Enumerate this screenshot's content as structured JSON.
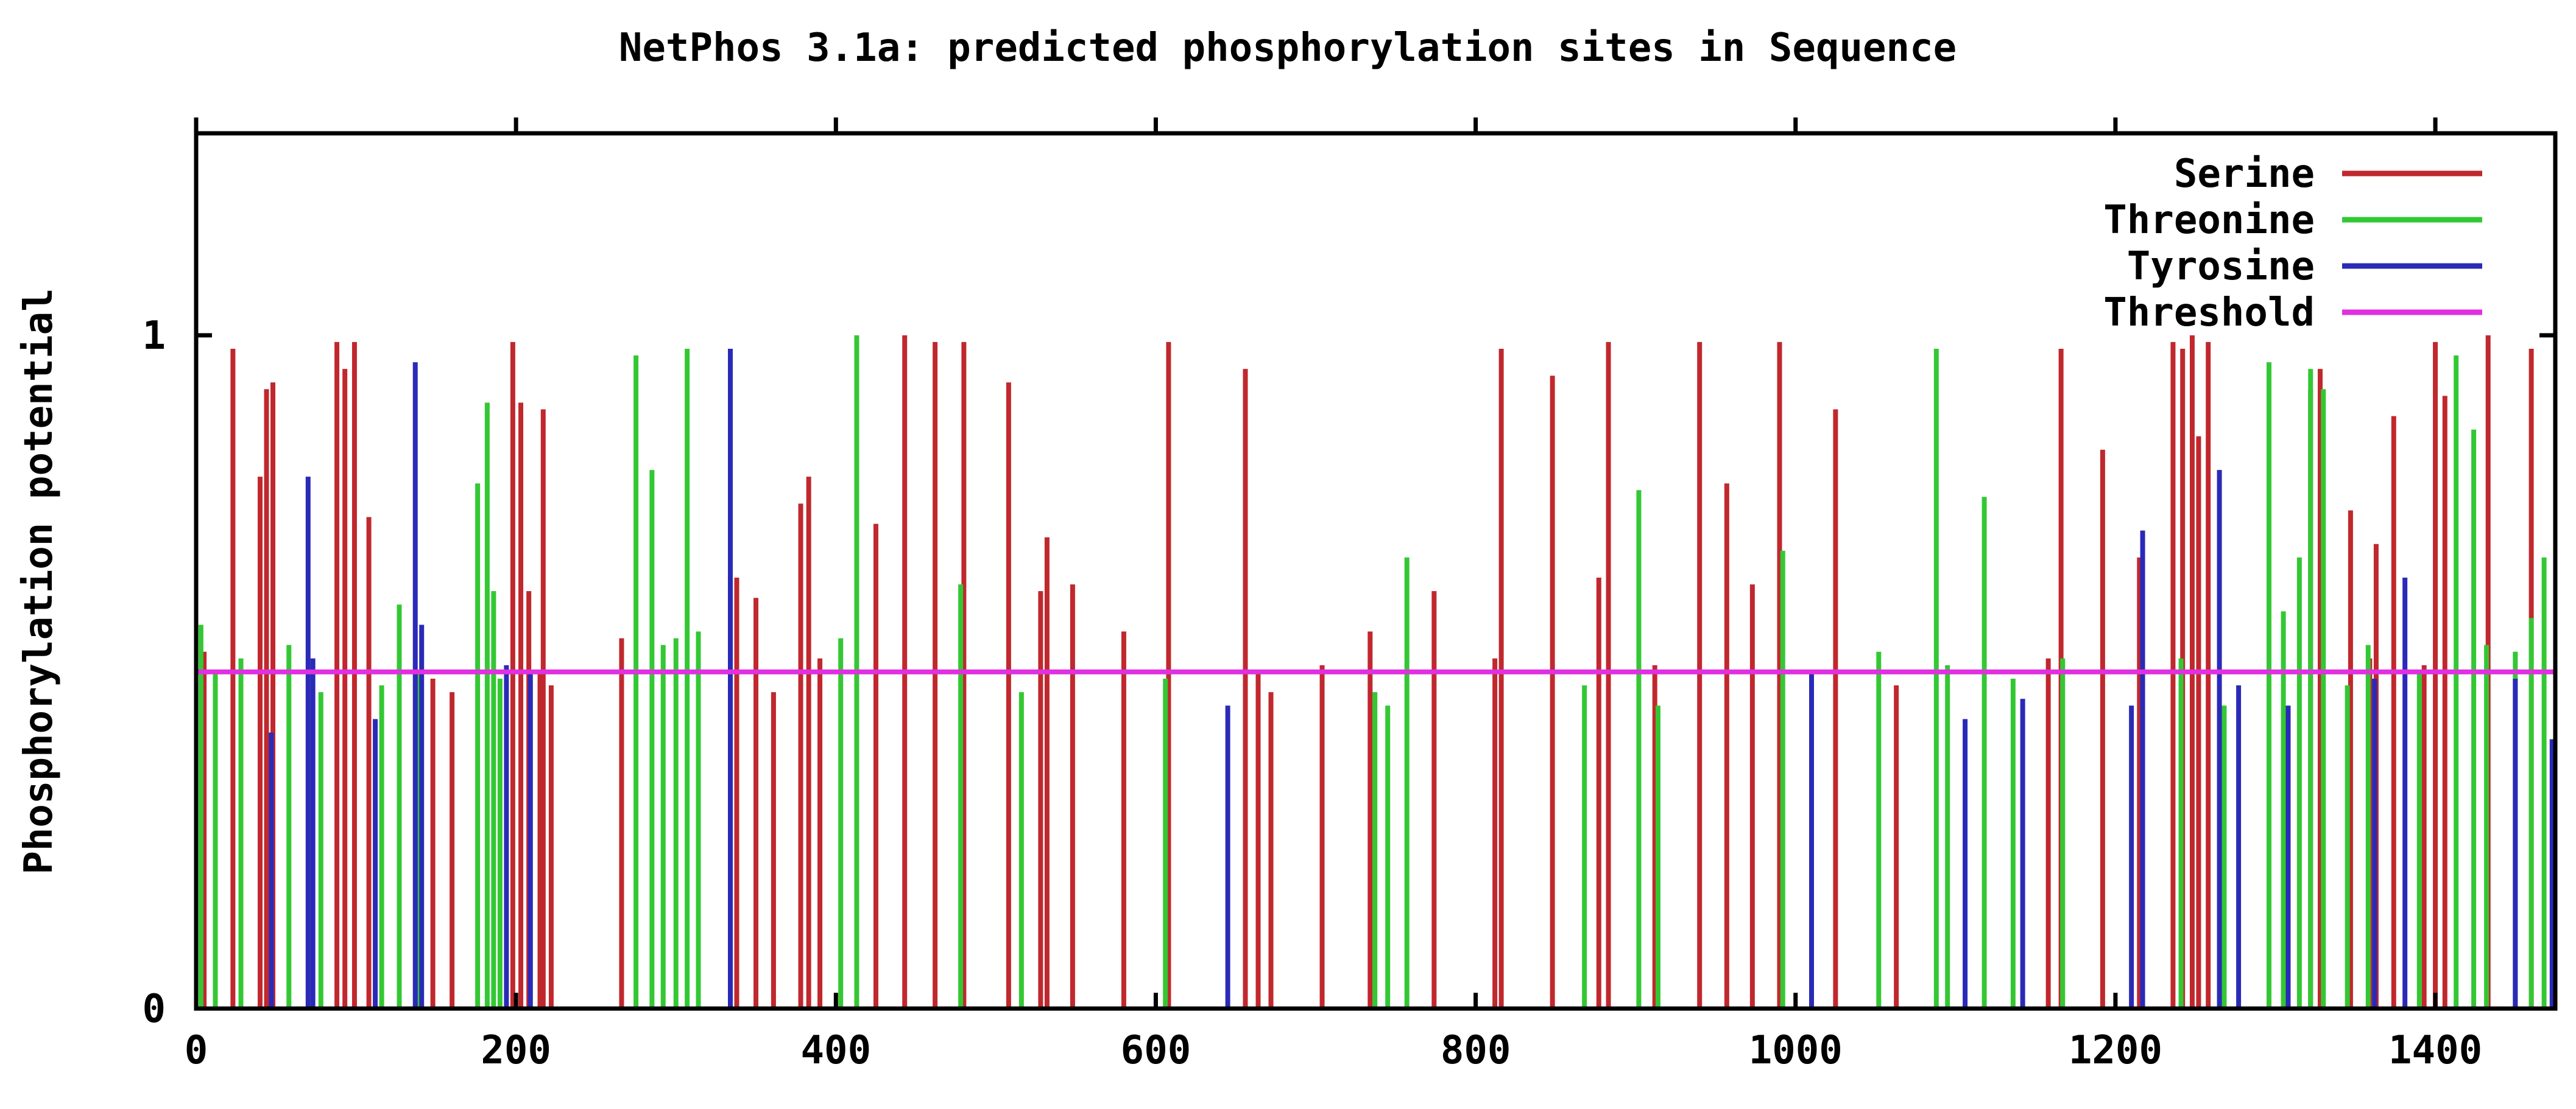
{
  "chart_data": {
    "type": "bar",
    "title": "NetPhos 3.1a: predicted phosphorylation sites in Sequence",
    "xlabel": "",
    "ylabel": "Phosphorylation potential",
    "xlim": [
      0,
      1475
    ],
    "ylim": [
      0,
      1.3
    ],
    "x_ticks": [
      0,
      200,
      400,
      600,
      800,
      1000,
      1200,
      1400
    ],
    "y_ticks": [
      0,
      1
    ],
    "grid": false,
    "legend_position": "top-right",
    "threshold": 0.5,
    "series": [
      {
        "name": "Serine",
        "color": "#c0282d",
        "points": [
          [
            5,
            0.53
          ],
          [
            23,
            0.98
          ],
          [
            40,
            0.79
          ],
          [
            44,
            0.92
          ],
          [
            48,
            0.93
          ],
          [
            88,
            0.99
          ],
          [
            93,
            0.95
          ],
          [
            99,
            0.99
          ],
          [
            108,
            0.73
          ],
          [
            148,
            0.49
          ],
          [
            160,
            0.47
          ],
          [
            198,
            0.99
          ],
          [
            203,
            0.9
          ],
          [
            208,
            0.62
          ],
          [
            215,
            0.5
          ],
          [
            217,
            0.89
          ],
          [
            222,
            0.48
          ],
          [
            266,
            0.55
          ],
          [
            338,
            0.64
          ],
          [
            350,
            0.61
          ],
          [
            361,
            0.47
          ],
          [
            378,
            0.75
          ],
          [
            383,
            0.79
          ],
          [
            390,
            0.52
          ],
          [
            425,
            0.72
          ],
          [
            443,
            1.0
          ],
          [
            462,
            0.99
          ],
          [
            480,
            0.99
          ],
          [
            508,
            0.93
          ],
          [
            528,
            0.62
          ],
          [
            532,
            0.7
          ],
          [
            548,
            0.63
          ],
          [
            580,
            0.56
          ],
          [
            608,
            0.99
          ],
          [
            656,
            0.95
          ],
          [
            664,
            0.5
          ],
          [
            672,
            0.47
          ],
          [
            704,
            0.51
          ],
          [
            734,
            0.56
          ],
          [
            774,
            0.62
          ],
          [
            812,
            0.52
          ],
          [
            816,
            0.98
          ],
          [
            848,
            0.94
          ],
          [
            877,
            0.64
          ],
          [
            883,
            0.99
          ],
          [
            912,
            0.51
          ],
          [
            940,
            0.99
          ],
          [
            957,
            0.78
          ],
          [
            973,
            0.63
          ],
          [
            990,
            0.99
          ],
          [
            1025,
            0.89
          ],
          [
            1063,
            0.48
          ],
          [
            1158,
            0.52
          ],
          [
            1166,
            0.98
          ],
          [
            1192,
            0.83
          ],
          [
            1215,
            0.67
          ],
          [
            1236,
            0.99
          ],
          [
            1242,
            0.98
          ],
          [
            1248,
            1.0
          ],
          [
            1252,
            0.85
          ],
          [
            1258,
            0.99
          ],
          [
            1322,
            0.92
          ],
          [
            1328,
            0.95
          ],
          [
            1347,
            0.74
          ],
          [
            1359,
            0.52
          ],
          [
            1363,
            0.69
          ],
          [
            1374,
            0.88
          ],
          [
            1393,
            0.51
          ],
          [
            1400,
            0.99
          ],
          [
            1406,
            0.91
          ],
          [
            1433,
            1.0
          ],
          [
            1460,
            0.98
          ]
        ]
      },
      {
        "name": "Threonine",
        "color": "#33c833",
        "points": [
          [
            3,
            0.57
          ],
          [
            12,
            0.5
          ],
          [
            28,
            0.52
          ],
          [
            58,
            0.54
          ],
          [
            78,
            0.47
          ],
          [
            116,
            0.48
          ],
          [
            127,
            0.6
          ],
          [
            138,
            0.5
          ],
          [
            176,
            0.78
          ],
          [
            182,
            0.9
          ],
          [
            186,
            0.62
          ],
          [
            190,
            0.49
          ],
          [
            275,
            0.97
          ],
          [
            285,
            0.8
          ],
          [
            292,
            0.54
          ],
          [
            300,
            0.55
          ],
          [
            307,
            0.98
          ],
          [
            314,
            0.56
          ],
          [
            403,
            0.55
          ],
          [
            413,
            1.0
          ],
          [
            478,
            0.63
          ],
          [
            516,
            0.47
          ],
          [
            606,
            0.49
          ],
          [
            737,
            0.47
          ],
          [
            745,
            0.45
          ],
          [
            757,
            0.67
          ],
          [
            868,
            0.48
          ],
          [
            902,
            0.77
          ],
          [
            914,
            0.45
          ],
          [
            992,
            0.68
          ],
          [
            1052,
            0.53
          ],
          [
            1088,
            0.98
          ],
          [
            1095,
            0.51
          ],
          [
            1118,
            0.76
          ],
          [
            1136,
            0.49
          ],
          [
            1167,
            0.52
          ],
          [
            1241,
            0.52
          ],
          [
            1268,
            0.45
          ],
          [
            1296,
            0.96
          ],
          [
            1305,
            0.59
          ],
          [
            1315,
            0.67
          ],
          [
            1322,
            0.95
          ],
          [
            1330,
            0.92
          ],
          [
            1345,
            0.48
          ],
          [
            1358,
            0.54
          ],
          [
            1390,
            0.5
          ],
          [
            1413,
            0.97
          ],
          [
            1424,
            0.86
          ],
          [
            1432,
            0.54
          ],
          [
            1450,
            0.53
          ],
          [
            1460,
            0.58
          ],
          [
            1468,
            0.67
          ]
        ]
      },
      {
        "name": "Tyrosine",
        "color": "#2a2ab8",
        "points": [
          [
            47,
            0.41
          ],
          [
            70,
            0.79
          ],
          [
            73,
            0.52
          ],
          [
            112,
            0.43
          ],
          [
            137,
            0.96
          ],
          [
            141,
            0.57
          ],
          [
            194,
            0.51
          ],
          [
            209,
            0.5
          ],
          [
            334,
            0.98
          ],
          [
            645,
            0.45
          ],
          [
            1010,
            0.5
          ],
          [
            1106,
            0.43
          ],
          [
            1142,
            0.46
          ],
          [
            1210,
            0.45
          ],
          [
            1217,
            0.71
          ],
          [
            1265,
            0.8
          ],
          [
            1277,
            0.48
          ],
          [
            1308,
            0.45
          ],
          [
            1362,
            0.49
          ],
          [
            1381,
            0.64
          ],
          [
            1450,
            0.49
          ],
          [
            1473,
            0.4
          ]
        ]
      },
      {
        "name": "Threshold",
        "color": "#e030e0",
        "points": [
          [
            0,
            0.5
          ],
          [
            1475,
            0.5
          ]
        ]
      }
    ]
  }
}
